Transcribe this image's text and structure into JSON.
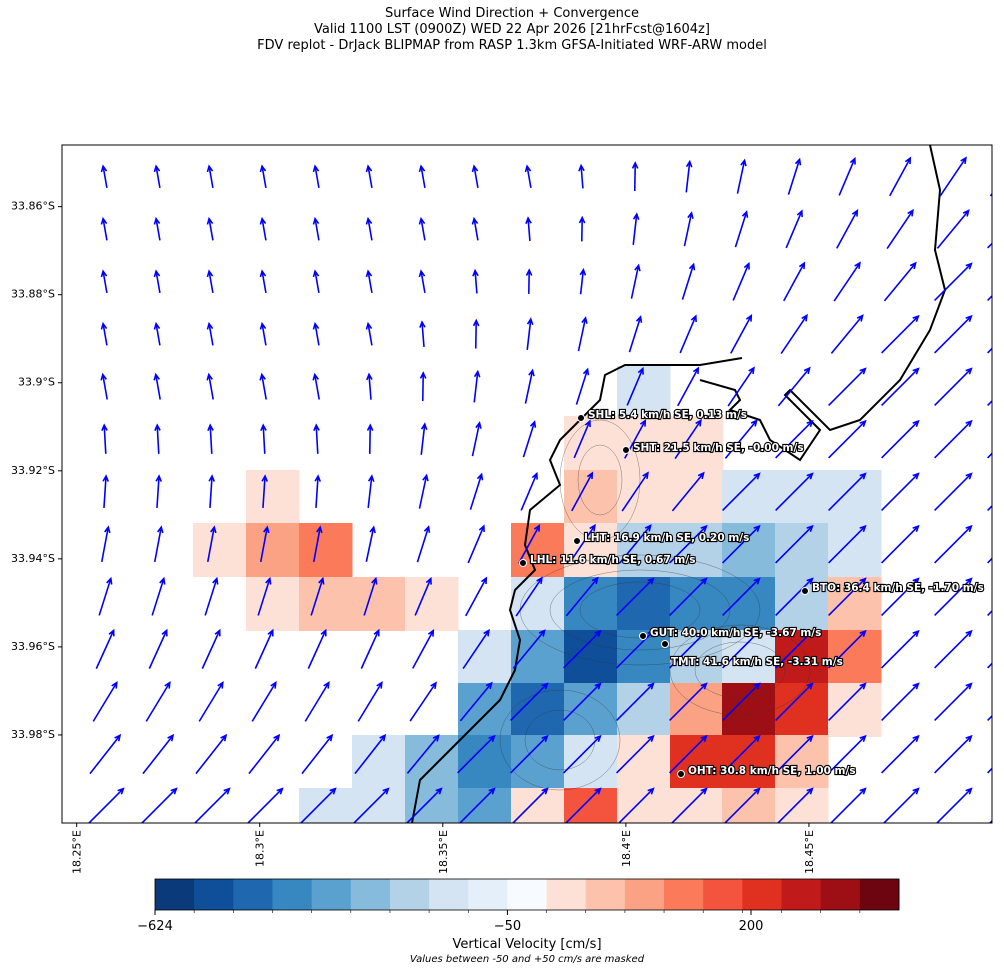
{
  "chart_data": {
    "type": "map",
    "title_lines": [
      "Surface Wind Direction + Convergence",
      "Valid 1100 LST (0900Z) WED 22 Apr 2026 [21hrFcst@1604z]",
      "FDV replot - DrJack BLIPMAP from RASP 1.3km GFSA-Initiated WRF-ARW model"
    ],
    "xlim": [
      18.246,
      18.5
    ],
    "ylim": [
      -34.0,
      -33.846
    ],
    "xticks": [
      {
        "value": 18.25,
        "label": "18.25°E"
      },
      {
        "value": 18.3,
        "label": "18.3°E"
      },
      {
        "value": 18.35,
        "label": "18.35°E"
      },
      {
        "value": 18.4,
        "label": "18.4°E"
      },
      {
        "value": 18.45,
        "label": "18.45°E"
      }
    ],
    "yticks": [
      {
        "value": -33.86,
        "label": "33.86°S"
      },
      {
        "value": -33.88,
        "label": "33.88°S"
      },
      {
        "value": -33.9,
        "label": "33.9°S"
      },
      {
        "value": -33.92,
        "label": "33.92°S"
      },
      {
        "value": -33.94,
        "label": "33.94°S"
      },
      {
        "value": -33.96,
        "label": "33.96°S"
      },
      {
        "value": -33.98,
        "label": "33.98°S"
      }
    ],
    "stations": [
      "SHL: 5.4 km/h SE, 0.13 m/s",
      "SHT: 21.5 km/h SE, -0.00 m/s",
      "LHT: 16.9 km/h SE, 0.20 m/s",
      "LHL: 11.6 km/h SE, 0.67 m/s",
      "BTO: 36.4 km/h SE, -1.70 m/s",
      "GUT: 40.0 km/h SE, -3.67 m/s",
      "TMT: 41.6 km/h SE, -3.31 m/s",
      "OHT: 30.8 km/h SE, 1.00 m/s"
    ],
    "arrow_color": "#0000ff",
    "colorbar": {
      "label": "Vertical Velocity [cm/s]",
      "note": "Values between -50 and +50 cm/s are masked",
      "colors": [
        "#0b3a7a",
        "#0f4f99",
        "#1f68b0",
        "#3787c0",
        "#5aa1cf",
        "#87bbdc",
        "#b3d1e7",
        "#d4e4f2",
        "#e5eff9",
        "#f7fbff",
        "#fde0d6",
        "#fcc2ab",
        "#fca284",
        "#fb7a5a",
        "#f4533d",
        "#e0301f",
        "#c11a1b",
        "#9e0f15",
        "#6d0510"
      ],
      "ticks": [
        {
          "value": -624,
          "label": "−624"
        },
        {
          "value": -50,
          "label": "−50"
        },
        200
      ]
    }
  }
}
